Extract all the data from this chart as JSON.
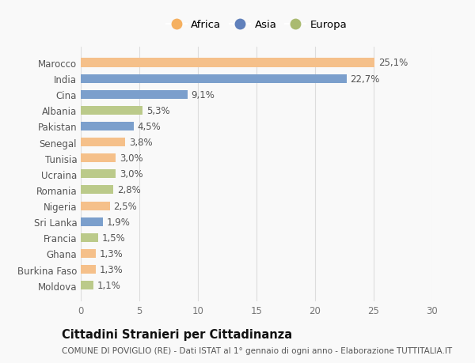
{
  "countries": [
    "Marocco",
    "India",
    "Cina",
    "Albania",
    "Pakistan",
    "Senegal",
    "Tunisia",
    "Ucraina",
    "Romania",
    "Nigeria",
    "Sri Lanka",
    "Francia",
    "Ghana",
    "Burkina Faso",
    "Moldova"
  ],
  "values": [
    25.1,
    22.7,
    9.1,
    5.3,
    4.5,
    3.8,
    3.0,
    3.0,
    2.8,
    2.5,
    1.9,
    1.5,
    1.3,
    1.3,
    1.1
  ],
  "continents": [
    "Africa",
    "Asia",
    "Asia",
    "Europa",
    "Asia",
    "Africa",
    "Africa",
    "Europa",
    "Europa",
    "Africa",
    "Asia",
    "Europa",
    "Africa",
    "Africa",
    "Europa"
  ],
  "colors": {
    "Africa": "#F5C08A",
    "Asia": "#7B9FCC",
    "Europa": "#BBCA8A"
  },
  "legend_colors": {
    "Africa": "#F5B060",
    "Asia": "#6080BB",
    "Europa": "#AABA70"
  },
  "xlim": [
    0,
    30
  ],
  "xticks": [
    0,
    5,
    10,
    15,
    20,
    25,
    30
  ],
  "title": "Cittadini Stranieri per Cittadinanza",
  "subtitle": "COMUNE DI POVIGLIO (RE) - Dati ISTAT al 1° gennaio di ogni anno - Elaborazione TUTTITALIA.IT",
  "bg_color": "#f9f9f9",
  "grid_color": "#dddddd",
  "label_fontsize": 8.5,
  "tick_fontsize": 8.5,
  "title_fontsize": 10.5,
  "subtitle_fontsize": 7.5,
  "bar_height": 0.55
}
